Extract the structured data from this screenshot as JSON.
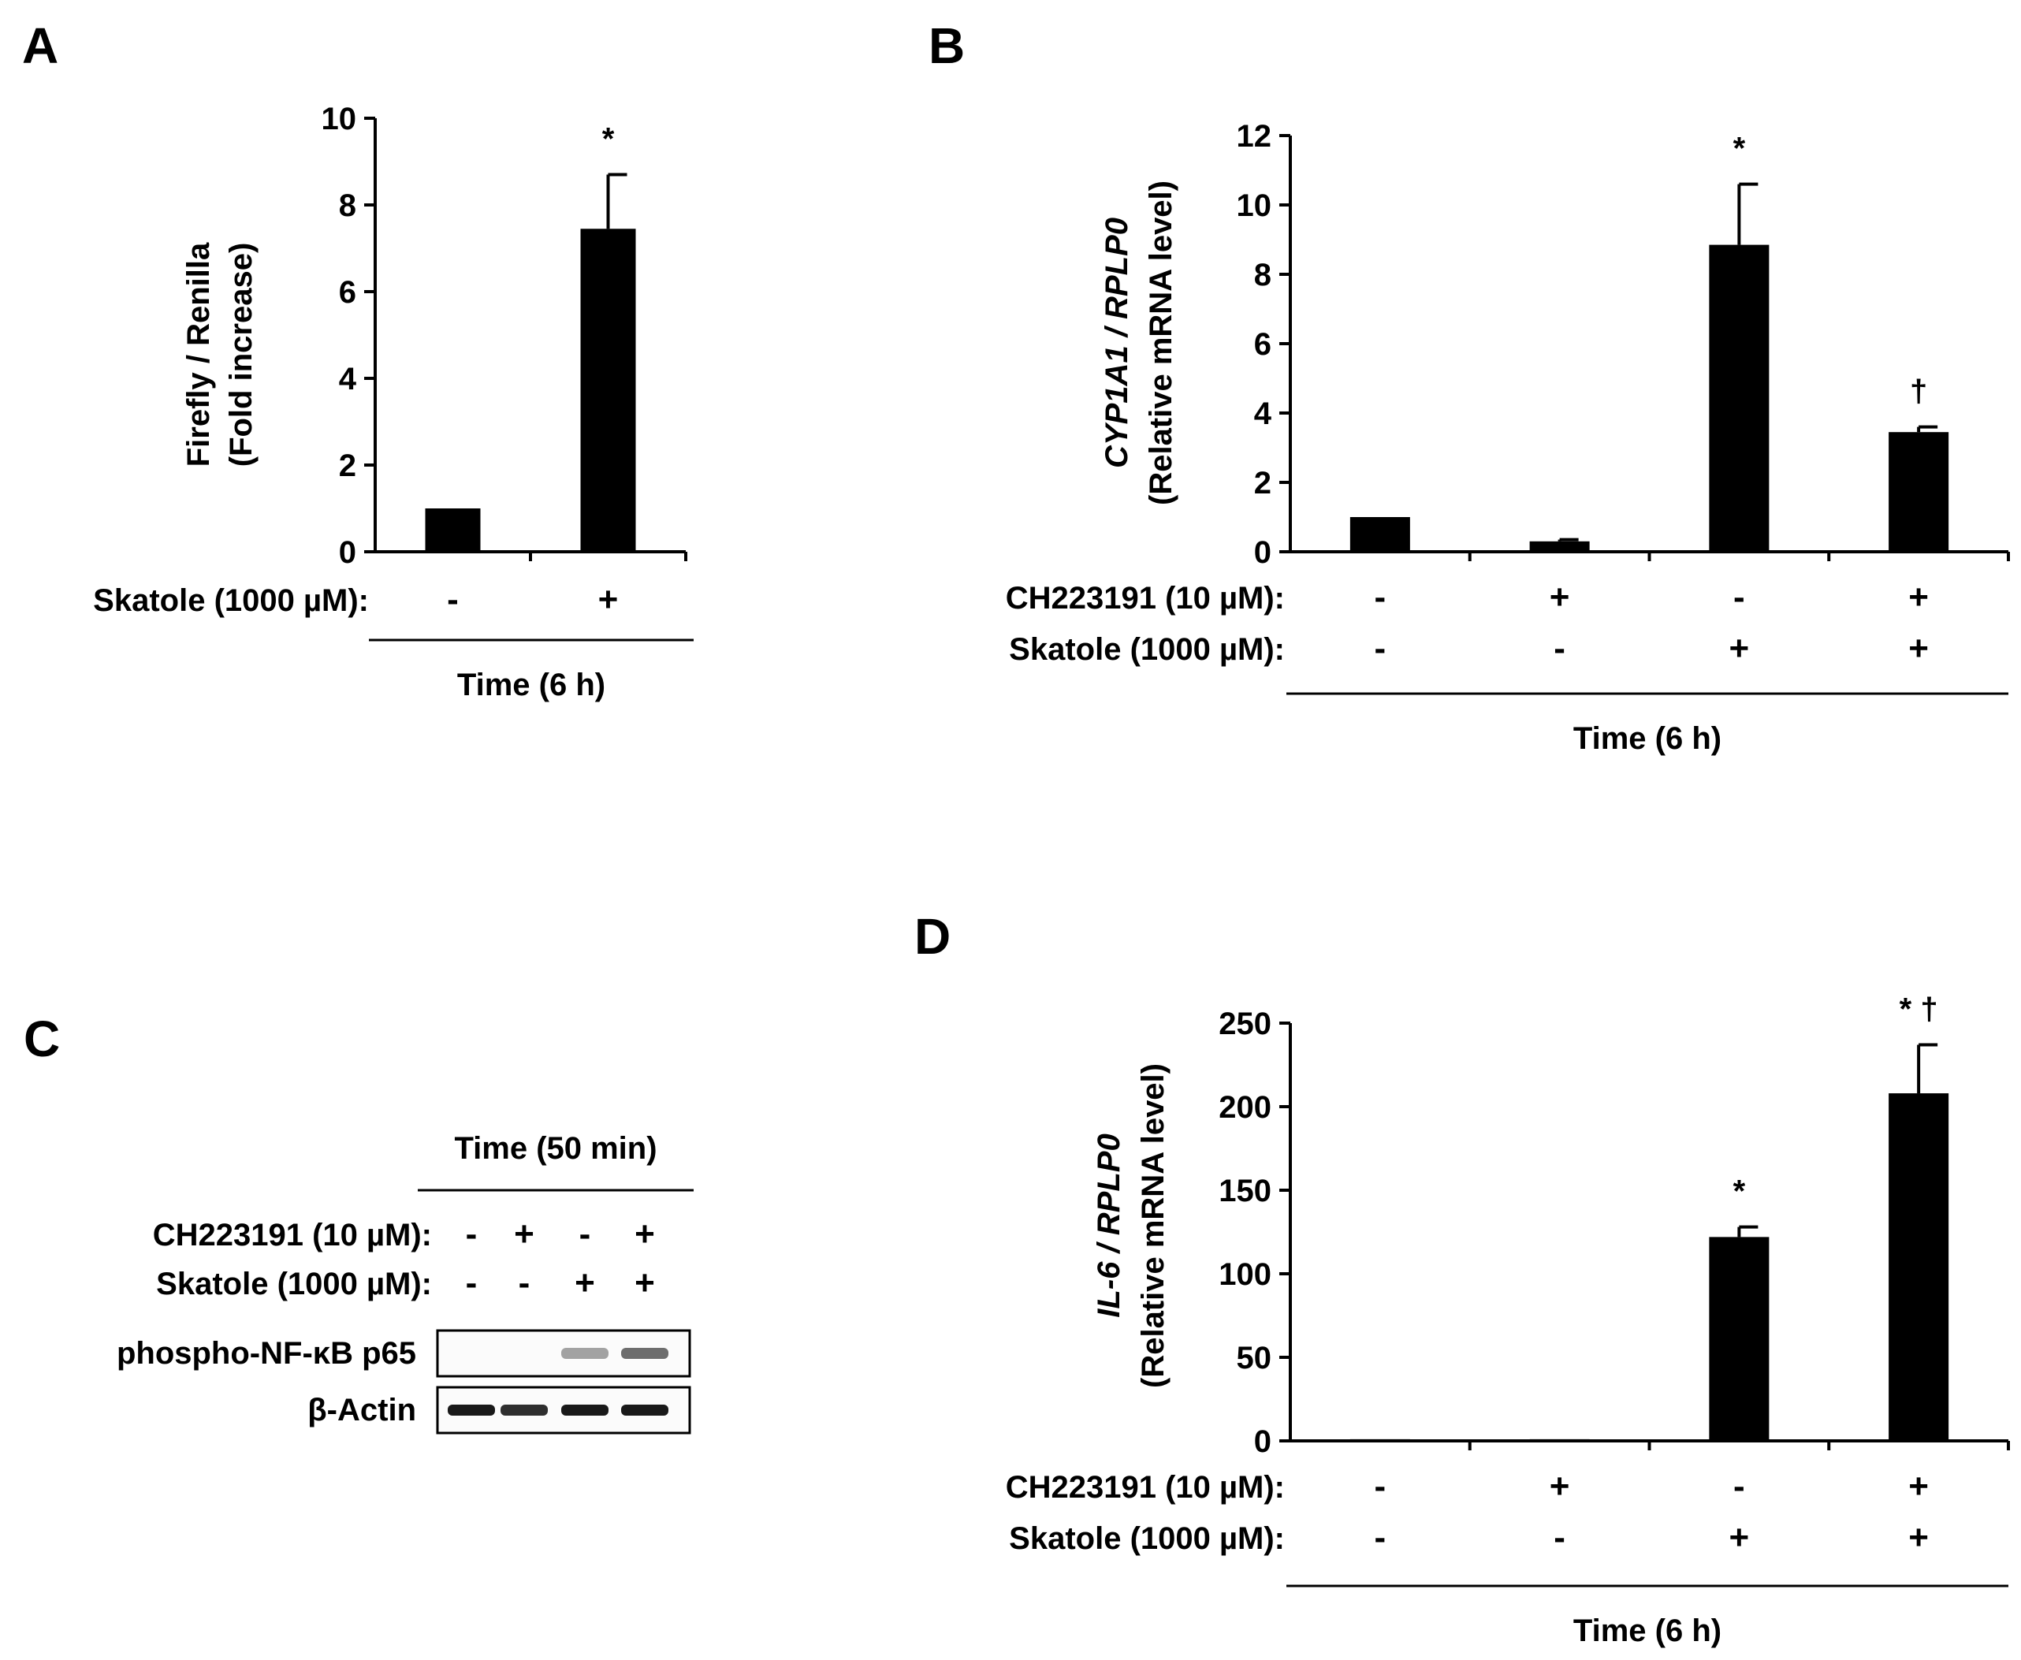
{
  "panels": {
    "a": {
      "label": "A"
    },
    "b": {
      "label": "B"
    },
    "c": {
      "label": "C"
    },
    "d": {
      "label": "D"
    }
  },
  "chart_data": [
    {
      "panel": "A",
      "type": "bar",
      "ylabel_line1": "Firefly / Renilla",
      "ylabel_line2": "(Fold increase)",
      "ylim": [
        0,
        10
      ],
      "yticks": [
        "0",
        "2",
        "4",
        "6",
        "8",
        "10"
      ],
      "yticks_values": [
        0,
        2,
        4,
        6,
        8,
        10
      ],
      "values": [
        1.0,
        7.45
      ],
      "errors": [
        0.0,
        1.25
      ],
      "annotations": [
        "",
        "*"
      ],
      "condition_rows": [
        {
          "label": "Skatole (1000 µM):",
          "signs": [
            "-",
            "+"
          ]
        }
      ],
      "time_label": "Time (6 h)"
    },
    {
      "panel": "B",
      "type": "bar",
      "ylabel_italic": "CYP1A1 / RPLP0",
      "ylabel_line2": "(Relative mRNA level)",
      "ylim": [
        0,
        12
      ],
      "yticks": [
        "0",
        "2",
        "4",
        "6",
        "8",
        "10",
        "12"
      ],
      "yticks_values": [
        0,
        2,
        4,
        6,
        8,
        10,
        12
      ],
      "values": [
        1.0,
        0.3,
        8.85,
        3.45
      ],
      "errors": [
        0.0,
        0.05,
        1.75,
        0.15
      ],
      "annotations": [
        "",
        "",
        "*",
        "†"
      ],
      "condition_rows": [
        {
          "label": "CH223191 (10 µM):",
          "signs": [
            "-",
            "+",
            "-",
            "+"
          ]
        },
        {
          "label": "Skatole (1000 µM):",
          "signs": [
            "-",
            "-",
            "+",
            "+"
          ]
        }
      ],
      "time_label": "Time  (6 h)"
    },
    {
      "panel": "D",
      "type": "bar",
      "ylabel_italic": "IL-6 / RPLP0",
      "ylabel_line2": "(Relative mRNA level)",
      "ylim": [
        0,
        250
      ],
      "yticks": [
        "0",
        "50",
        "100",
        "150",
        "200",
        "250"
      ],
      "yticks_values": [
        0,
        50,
        100,
        150,
        200,
        250
      ],
      "values": [
        1.0,
        1.0,
        122,
        208
      ],
      "errors": [
        0.0,
        0.0,
        6,
        29
      ],
      "annotations": [
        "",
        "",
        "*",
        "* †"
      ],
      "condition_rows": [
        {
          "label": "CH223191 (10 µM):",
          "signs": [
            "-",
            "+",
            "-",
            "+"
          ]
        },
        {
          "label": "Skatole (1000 µM):",
          "signs": [
            "-",
            "-",
            "+",
            "+"
          ]
        }
      ],
      "time_label": "Time  (6 h)"
    }
  ],
  "blot": {
    "time_label": "Time  (50 min)",
    "condition_rows": [
      {
        "label": "CH223191 (10 µM):",
        "signs": [
          "-",
          "+",
          "-",
          "+"
        ]
      },
      {
        "label": "Skatole (1000 µM):",
        "signs": [
          "-",
          "-",
          "+",
          "+"
        ]
      }
    ],
    "bands": [
      {
        "label": "phospho-NF-κB p65",
        "intensities": [
          0.0,
          0.0,
          0.35,
          0.6
        ]
      },
      {
        "label": "β-Actin",
        "intensities": [
          1.0,
          0.9,
          1.0,
          1.0
        ]
      }
    ]
  }
}
